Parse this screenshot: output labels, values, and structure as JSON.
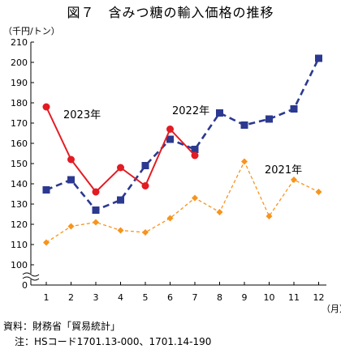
{
  "title": "図７　含みつ糖の輸入価格の推移",
  "unit_label": "（千円/トン）",
  "x_unit_label": "（月）",
  "source": "資料：財務省「貿易統計」",
  "note": "注：HSコード1701.13-000、1701.14-190",
  "chart_data": {
    "type": "line",
    "x": [
      1,
      2,
      3,
      4,
      5,
      6,
      7,
      8,
      9,
      10,
      11,
      12
    ],
    "ylim": [
      100,
      210
    ],
    "yticks": [
      0,
      100,
      110,
      120,
      130,
      140,
      150,
      160,
      170,
      180,
      190,
      200,
      210
    ],
    "y_break": true,
    "grid": false,
    "series": [
      {
        "name": "2023年",
        "color": "#e31b23",
        "style": "solid",
        "marker": "circle",
        "values": [
          178,
          152,
          136,
          148,
          139,
          167,
          154,
          null,
          null,
          null,
          null,
          null
        ]
      },
      {
        "name": "2022年",
        "color": "#2b3990",
        "style": "dashed",
        "marker": "square",
        "values": [
          137,
          142,
          127,
          132,
          149,
          162,
          157,
          175,
          169,
          172,
          177,
          202
        ]
      },
      {
        "name": "2021年",
        "color": "#f7941d",
        "style": "dashed",
        "marker": "diamond",
        "values": [
          111,
          119,
          121,
          117,
          116,
          123,
          133,
          126,
          151,
          124,
          142,
          136
        ]
      }
    ]
  }
}
